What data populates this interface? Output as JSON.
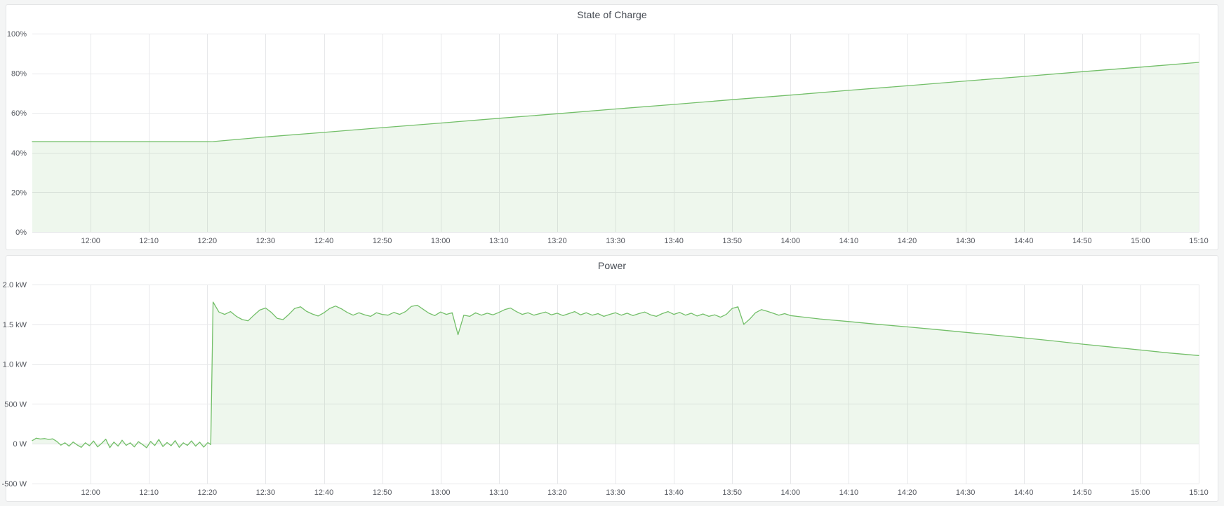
{
  "theme": {
    "page_bg": "#f4f5f5",
    "panel_bg": "#ffffff",
    "panel_border": "#e4e5e6",
    "title_color": "#454a52",
    "grid_color": "#e7e8ea",
    "axis_text_color": "#53565d",
    "accent_green": "#73bf69"
  },
  "chart_data": [
    {
      "type": "area",
      "title": "State of Charge",
      "x_start": "11:50",
      "x_end": "15:10",
      "x_ticks": [
        "12:00",
        "12:10",
        "12:20",
        "12:30",
        "12:40",
        "12:50",
        "13:00",
        "13:10",
        "13:20",
        "13:30",
        "13:40",
        "13:50",
        "14:00",
        "14:10",
        "14:20",
        "14:30",
        "14:40",
        "14:50",
        "15:00",
        "15:10"
      ],
      "ylim": [
        0,
        100
      ],
      "y_ticks": [
        {
          "v": 0,
          "label": "0%"
        },
        {
          "v": 20,
          "label": "20%"
        },
        {
          "v": 40,
          "label": "40%"
        },
        {
          "v": 60,
          "label": "60%"
        },
        {
          "v": 80,
          "label": "80%"
        },
        {
          "v": 100,
          "label": "100%"
        }
      ],
      "grid": true,
      "legend": "none",
      "series": [
        {
          "name": "State of Charge",
          "unit": "%",
          "color": "#73bf69",
          "fill_opacity": 0.12,
          "points": [
            [
              0,
              45.5
            ],
            [
              10,
              45.5
            ],
            [
              20,
              45.5
            ],
            [
              30,
              45.5
            ],
            [
              31,
              45.6
            ],
            [
              40,
              47.9
            ],
            [
              50,
              50.2
            ],
            [
              60,
              52.6
            ],
            [
              70,
              54.9
            ],
            [
              80,
              57.3
            ],
            [
              90,
              59.6
            ],
            [
              100,
              62.0
            ],
            [
              110,
              64.3
            ],
            [
              120,
              66.7
            ],
            [
              130,
              69.0
            ],
            [
              140,
              71.4
            ],
            [
              150,
              73.7
            ],
            [
              160,
              76.1
            ],
            [
              170,
              78.4
            ],
            [
              180,
              80.8
            ],
            [
              190,
              83.1
            ],
            [
              200,
              85.5
            ]
          ]
        }
      ]
    },
    {
      "type": "area",
      "title": "Power",
      "x_start": "11:50",
      "x_end": "15:10",
      "x_ticks": [
        "12:00",
        "12:10",
        "12:20",
        "12:30",
        "12:40",
        "12:50",
        "13:00",
        "13:10",
        "13:20",
        "13:30",
        "13:40",
        "13:50",
        "14:00",
        "14:10",
        "14:20",
        "14:30",
        "14:40",
        "14:50",
        "15:00",
        "15:10"
      ],
      "ylim": [
        -500,
        2000
      ],
      "y_ticks": [
        {
          "v": -500,
          "label": "-500 W"
        },
        {
          "v": 0,
          "label": "0 W"
        },
        {
          "v": 500,
          "label": "500 W"
        },
        {
          "v": 1000,
          "label": "1.0 kW"
        },
        {
          "v": 1500,
          "label": "1.5 kW"
        },
        {
          "v": 2000,
          "label": "2.0 kW"
        }
      ],
      "grid": true,
      "legend": "none",
      "series": [
        {
          "name": "Power",
          "unit": "W",
          "color": "#73bf69",
          "fill_opacity": 0.12,
          "points": [
            [
              0,
              40
            ],
            [
              0.7,
              70
            ],
            [
              1.4,
              60
            ],
            [
              2.1,
              65
            ],
            [
              2.8,
              55
            ],
            [
              3.5,
              62
            ],
            [
              4.2,
              30
            ],
            [
              4.9,
              -18
            ],
            [
              5.6,
              12
            ],
            [
              6.3,
              -30
            ],
            [
              7,
              22
            ],
            [
              7.7,
              -15
            ],
            [
              8.4,
              -45
            ],
            [
              9.1,
              12
            ],
            [
              9.8,
              -25
            ],
            [
              10.5,
              35
            ],
            [
              11.2,
              -40
            ],
            [
              11.9,
              6
            ],
            [
              12.6,
              58
            ],
            [
              13.3,
              -48
            ],
            [
              14,
              22
            ],
            [
              14.7,
              -30
            ],
            [
              15.4,
              45
            ],
            [
              16.1,
              -20
            ],
            [
              16.8,
              12
            ],
            [
              17.5,
              -40
            ],
            [
              18.2,
              26
            ],
            [
              18.9,
              -10
            ],
            [
              19.6,
              -50
            ],
            [
              20.3,
              30
            ],
            [
              21,
              -22
            ],
            [
              21.7,
              55
            ],
            [
              22.4,
              -35
            ],
            [
              23.1,
              16
            ],
            [
              23.8,
              -25
            ],
            [
              24.5,
              40
            ],
            [
              25.2,
              -45
            ],
            [
              25.9,
              12
            ],
            [
              26.6,
              -20
            ],
            [
              27.3,
              36
            ],
            [
              28,
              -30
            ],
            [
              28.7,
              20
            ],
            [
              29.4,
              -42
            ],
            [
              30.1,
              15
            ],
            [
              30.6,
              -10
            ],
            [
              31,
              1780
            ],
            [
              32,
              1655
            ],
            [
              33,
              1625
            ],
            [
              34,
              1660
            ],
            [
              35,
              1600
            ],
            [
              36,
              1560
            ],
            [
              37,
              1545
            ],
            [
              38,
              1615
            ],
            [
              39,
              1680
            ],
            [
              40,
              1705
            ],
            [
              41,
              1650
            ],
            [
              42,
              1575
            ],
            [
              43,
              1560
            ],
            [
              44,
              1625
            ],
            [
              45,
              1700
            ],
            [
              46,
              1720
            ],
            [
              47,
              1665
            ],
            [
              48,
              1630
            ],
            [
              49,
              1605
            ],
            [
              50,
              1645
            ],
            [
              51,
              1700
            ],
            [
              52,
              1730
            ],
            [
              53,
              1695
            ],
            [
              54,
              1650
            ],
            [
              55,
              1615
            ],
            [
              56,
              1645
            ],
            [
              57,
              1620
            ],
            [
              58,
              1600
            ],
            [
              59,
              1645
            ],
            [
              60,
              1625
            ],
            [
              61,
              1615
            ],
            [
              62,
              1650
            ],
            [
              63,
              1625
            ],
            [
              64,
              1660
            ],
            [
              65,
              1725
            ],
            [
              66,
              1740
            ],
            [
              67,
              1690
            ],
            [
              68,
              1640
            ],
            [
              69,
              1610
            ],
            [
              70,
              1655
            ],
            [
              71,
              1625
            ],
            [
              72,
              1645
            ],
            [
              73,
              1370
            ],
            [
              74,
              1615
            ],
            [
              75,
              1600
            ],
            [
              76,
              1645
            ],
            [
              77,
              1615
            ],
            [
              78,
              1640
            ],
            [
              79,
              1620
            ],
            [
              80,
              1650
            ],
            [
              81,
              1685
            ],
            [
              82,
              1705
            ],
            [
              83,
              1660
            ],
            [
              84,
              1625
            ],
            [
              85,
              1645
            ],
            [
              86,
              1615
            ],
            [
              87,
              1635
            ],
            [
              88,
              1655
            ],
            [
              89,
              1620
            ],
            [
              90,
              1640
            ],
            [
              91,
              1610
            ],
            [
              92,
              1635
            ],
            [
              93,
              1660
            ],
            [
              94,
              1620
            ],
            [
              95,
              1645
            ],
            [
              96,
              1615
            ],
            [
              97,
              1635
            ],
            [
              98,
              1600
            ],
            [
              99,
              1625
            ],
            [
              100,
              1645
            ],
            [
              101,
              1615
            ],
            [
              102,
              1640
            ],
            [
              103,
              1610
            ],
            [
              104,
              1635
            ],
            [
              105,
              1655
            ],
            [
              106,
              1620
            ],
            [
              107,
              1600
            ],
            [
              108,
              1635
            ],
            [
              109,
              1660
            ],
            [
              110,
              1625
            ],
            [
              111,
              1650
            ],
            [
              112,
              1615
            ],
            [
              113,
              1640
            ],
            [
              114,
              1605
            ],
            [
              115,
              1630
            ],
            [
              116,
              1600
            ],
            [
              117,
              1620
            ],
            [
              118,
              1590
            ],
            [
              119,
              1625
            ],
            [
              120,
              1700
            ],
            [
              121,
              1720
            ],
            [
              122,
              1500
            ],
            [
              123,
              1565
            ],
            [
              124,
              1645
            ],
            [
              125,
              1685
            ],
            [
              126,
              1665
            ],
            [
              127,
              1640
            ],
            [
              128,
              1615
            ],
            [
              129,
              1635
            ],
            [
              130,
              1610
            ],
            [
              135,
              1568
            ],
            [
              140,
              1535
            ],
            [
              145,
              1500
            ],
            [
              150,
              1468
            ],
            [
              155,
              1435
            ],
            [
              160,
              1400
            ],
            [
              165,
              1365
            ],
            [
              170,
              1330
            ],
            [
              175,
              1292
            ],
            [
              180,
              1252
            ],
            [
              185,
              1215
            ],
            [
              190,
              1178
            ],
            [
              195,
              1140
            ],
            [
              200,
              1108
            ]
          ]
        }
      ]
    }
  ]
}
